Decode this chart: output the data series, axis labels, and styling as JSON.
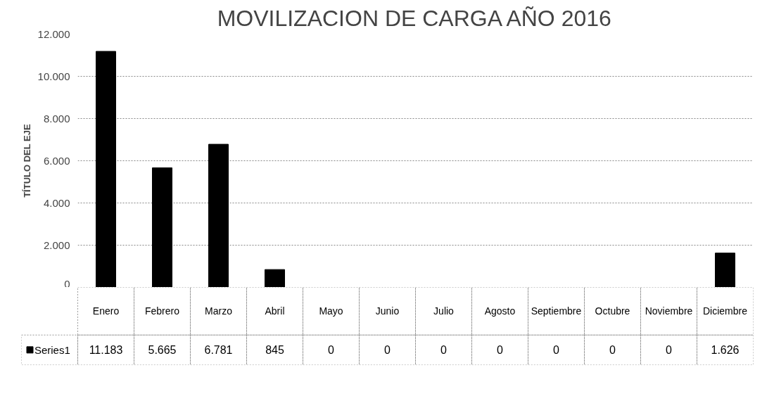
{
  "chart_data": {
    "type": "bar",
    "title": "MOVILIZACION DE CARGA AÑO 2016",
    "ylabel": "TÍTULO DEL EJE",
    "categories": [
      "Enero",
      "Febrero",
      "Marzo",
      "Abril",
      "Mayo",
      "Junio",
      "Julio",
      "Agosto",
      "Septiembre",
      "Octubre",
      "Noviembre",
      "Diciembre"
    ],
    "series": [
      {
        "name": "Series1",
        "color": "#000000",
        "values": [
          11183,
          5665,
          6781,
          845,
          0,
          0,
          0,
          0,
          0,
          0,
          0,
          1626
        ],
        "value_labels": [
          "11.183",
          "5.665",
          "6.781",
          "845",
          "0",
          "0",
          "0",
          "0",
          "0",
          "0",
          "0",
          "1.626"
        ]
      }
    ],
    "ylim": [
      0,
      12000
    ],
    "yticks": [
      {
        "value": 0,
        "label": "0"
      },
      {
        "value": 2000,
        "label": "2.000"
      },
      {
        "value": 4000,
        "label": "4.000"
      },
      {
        "value": 6000,
        "label": "6.000"
      },
      {
        "value": 8000,
        "label": "8.000"
      },
      {
        "value": 10000,
        "label": "10.000"
      },
      {
        "value": 12000,
        "label": "12.000"
      }
    ],
    "grid": "y",
    "legend": "bottom left"
  }
}
